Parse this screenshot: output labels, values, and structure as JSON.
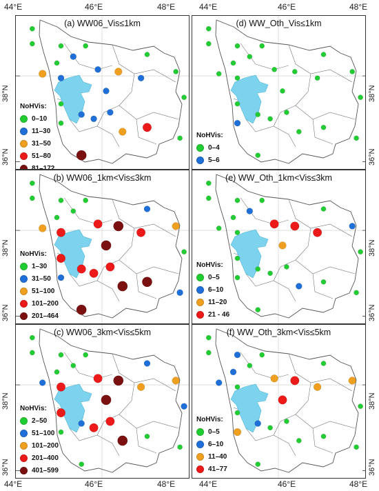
{
  "axes": {
    "longitude_labels_left": [
      "44°E",
      "46°E",
      "48°E"
    ],
    "longitude_labels_right": [
      "44°E",
      "46°E",
      "48°E"
    ],
    "latitude_labels": [
      "38°N",
      "36°N"
    ]
  },
  "colors": {
    "lake": "#7dd3ee",
    "green": "#22cc33",
    "blue": "#1f6fd8",
    "orange": "#f0a020",
    "red": "#ee1a1a",
    "darkred": "#7a1010"
  },
  "panels": [
    {
      "id": "a",
      "title": "(a) WW06_Vis≤1km",
      "legend_title": "NoHVis:",
      "legend": [
        {
          "label": "0–10",
          "color": "green"
        },
        {
          "label": "11–30",
          "color": "blue"
        },
        {
          "label": "31–50",
          "color": "orange"
        },
        {
          "label": "51–80",
          "color": "red"
        },
        {
          "label": "81–172",
          "color": "darkred"
        }
      ],
      "stations": [
        {
          "lon": 44.3,
          "lat": 39.1,
          "cls": 0
        },
        {
          "lon": 44.3,
          "lat": 38.75,
          "cls": 0
        },
        {
          "lon": 45.0,
          "lat": 38.7,
          "cls": 0
        },
        {
          "lon": 45.6,
          "lat": 38.7,
          "cls": 0
        },
        {
          "lon": 44.9,
          "lat": 38.3,
          "cls": 0
        },
        {
          "lon": 45.3,
          "lat": 38.45,
          "cls": 1
        },
        {
          "lon": 47.1,
          "lat": 38.5,
          "cls": 0
        },
        {
          "lon": 44.55,
          "lat": 38.05,
          "cls": 2
        },
        {
          "lon": 45.0,
          "lat": 37.95,
          "cls": 1
        },
        {
          "lon": 45.9,
          "lat": 38.15,
          "cls": 1
        },
        {
          "lon": 46.4,
          "lat": 38.1,
          "cls": 2
        },
        {
          "lon": 46.95,
          "lat": 37.95,
          "cls": 1
        },
        {
          "lon": 47.8,
          "lat": 38.1,
          "cls": 0
        },
        {
          "lon": 46.1,
          "lat": 37.65,
          "cls": 1
        },
        {
          "lon": 48.0,
          "lat": 37.5,
          "cls": 0
        },
        {
          "lon": 45.0,
          "lat": 37.35,
          "cls": 0
        },
        {
          "lon": 45.5,
          "lat": 37.1,
          "cls": 1
        },
        {
          "lon": 45.8,
          "lat": 37.0,
          "cls": 1
        },
        {
          "lon": 46.2,
          "lat": 37.15,
          "cls": 1
        },
        {
          "lon": 45.0,
          "lat": 36.9,
          "cls": 0
        },
        {
          "lon": 46.5,
          "lat": 36.7,
          "cls": 2
        },
        {
          "lon": 47.1,
          "lat": 36.8,
          "cls": 3
        },
        {
          "lon": 47.9,
          "lat": 36.55,
          "cls": 0
        },
        {
          "lon": 45.5,
          "lat": 36.15,
          "cls": 4
        }
      ]
    },
    {
      "id": "d",
      "title": "(d) WW_Oth_Vis≤1km",
      "legend_title": "NoHVis:",
      "legend": [
        {
          "label": "0–4",
          "color": "green"
        },
        {
          "label": "5–6",
          "color": "blue"
        }
      ],
      "stations": [
        {
          "lon": 44.3,
          "lat": 39.1,
          "cls": 0
        },
        {
          "lon": 44.3,
          "lat": 38.75,
          "cls": 0
        },
        {
          "lon": 45.0,
          "lat": 38.7,
          "cls": 0
        },
        {
          "lon": 45.6,
          "lat": 38.7,
          "cls": 0
        },
        {
          "lon": 44.9,
          "lat": 38.3,
          "cls": 0
        },
        {
          "lon": 45.3,
          "lat": 38.45,
          "cls": 0
        },
        {
          "lon": 47.1,
          "lat": 38.5,
          "cls": 0
        },
        {
          "lon": 44.55,
          "lat": 38.05,
          "cls": 0
        },
        {
          "lon": 45.0,
          "lat": 37.95,
          "cls": 0
        },
        {
          "lon": 45.9,
          "lat": 38.15,
          "cls": 0
        },
        {
          "lon": 46.4,
          "lat": 38.1,
          "cls": 0
        },
        {
          "lon": 46.95,
          "lat": 37.95,
          "cls": 0
        },
        {
          "lon": 47.8,
          "lat": 38.1,
          "cls": 0
        },
        {
          "lon": 46.1,
          "lat": 37.65,
          "cls": 0
        },
        {
          "lon": 48.0,
          "lat": 37.5,
          "cls": 0
        },
        {
          "lon": 45.0,
          "lat": 37.35,
          "cls": 0
        },
        {
          "lon": 45.5,
          "lat": 37.1,
          "cls": 0
        },
        {
          "lon": 45.8,
          "lat": 37.0,
          "cls": 0
        },
        {
          "lon": 46.2,
          "lat": 37.15,
          "cls": 0
        },
        {
          "lon": 45.0,
          "lat": 36.9,
          "cls": 1
        },
        {
          "lon": 46.5,
          "lat": 36.7,
          "cls": 0
        },
        {
          "lon": 47.1,
          "lat": 36.8,
          "cls": 0
        },
        {
          "lon": 47.9,
          "lat": 36.55,
          "cls": 0
        },
        {
          "lon": 45.5,
          "lat": 36.15,
          "cls": 0
        }
      ]
    },
    {
      "id": "b",
      "title": "(b) WW06_1km<Vis≤3km",
      "legend_title": "NoHVis:",
      "legend": [
        {
          "label": "1–30",
          "color": "green"
        },
        {
          "label": "31–50",
          "color": "blue"
        },
        {
          "label": "51–100",
          "color": "orange"
        },
        {
          "label": "101–200",
          "color": "red"
        },
        {
          "label": "201–464",
          "color": "darkred"
        }
      ],
      "stations": [
        {
          "lon": 44.3,
          "lat": 39.1,
          "cls": 0
        },
        {
          "lon": 44.3,
          "lat": 38.75,
          "cls": 0
        },
        {
          "lon": 45.0,
          "lat": 38.7,
          "cls": 0
        },
        {
          "lon": 45.6,
          "lat": 38.7,
          "cls": 0
        },
        {
          "lon": 44.9,
          "lat": 38.3,
          "cls": 0
        },
        {
          "lon": 45.3,
          "lat": 38.45,
          "cls": 0
        },
        {
          "lon": 47.1,
          "lat": 38.5,
          "cls": 1
        },
        {
          "lon": 44.55,
          "lat": 38.05,
          "cls": 2
        },
        {
          "lon": 45.0,
          "lat": 37.95,
          "cls": 3
        },
        {
          "lon": 45.9,
          "lat": 38.15,
          "cls": 3
        },
        {
          "lon": 46.4,
          "lat": 38.1,
          "cls": 4
        },
        {
          "lon": 46.95,
          "lat": 37.95,
          "cls": 3
        },
        {
          "lon": 47.8,
          "lat": 38.1,
          "cls": 2
        },
        {
          "lon": 46.1,
          "lat": 37.65,
          "cls": 4
        },
        {
          "lon": 48.0,
          "lat": 37.5,
          "cls": 0
        },
        {
          "lon": 45.0,
          "lat": 37.35,
          "cls": 3
        },
        {
          "lon": 45.5,
          "lat": 37.1,
          "cls": 3
        },
        {
          "lon": 45.8,
          "lat": 37.0,
          "cls": 3
        },
        {
          "lon": 46.2,
          "lat": 37.15,
          "cls": 3
        },
        {
          "lon": 45.0,
          "lat": 36.9,
          "cls": 1
        },
        {
          "lon": 46.5,
          "lat": 36.7,
          "cls": 4
        },
        {
          "lon": 47.1,
          "lat": 36.8,
          "cls": 4
        },
        {
          "lon": 47.9,
          "lat": 36.55,
          "cls": 1
        },
        {
          "lon": 45.5,
          "lat": 36.15,
          "cls": 4
        }
      ]
    },
    {
      "id": "e",
      "title": "(e) WW_Oth_1km<Vis≤3km",
      "legend_title": "NoHVis:",
      "legend": [
        {
          "label": "0–5",
          "color": "green"
        },
        {
          "label": "6–10",
          "color": "blue"
        },
        {
          "label": "11–20",
          "color": "orange"
        },
        {
          "label": "21 - 46",
          "color": "red"
        }
      ],
      "stations": [
        {
          "lon": 44.3,
          "lat": 39.1,
          "cls": 0
        },
        {
          "lon": 44.3,
          "lat": 38.75,
          "cls": 0
        },
        {
          "lon": 45.0,
          "lat": 38.7,
          "cls": 0
        },
        {
          "lon": 45.6,
          "lat": 38.7,
          "cls": 0
        },
        {
          "lon": 44.9,
          "lat": 38.3,
          "cls": 0
        },
        {
          "lon": 45.3,
          "lat": 38.45,
          "cls": 1
        },
        {
          "lon": 47.1,
          "lat": 38.5,
          "cls": 0
        },
        {
          "lon": 44.55,
          "lat": 38.05,
          "cls": 0
        },
        {
          "lon": 45.0,
          "lat": 37.95,
          "cls": 0
        },
        {
          "lon": 45.9,
          "lat": 38.15,
          "cls": 3
        },
        {
          "lon": 46.4,
          "lat": 38.1,
          "cls": 3
        },
        {
          "lon": 46.95,
          "lat": 37.95,
          "cls": 3
        },
        {
          "lon": 47.8,
          "lat": 38.1,
          "cls": 1
        },
        {
          "lon": 46.1,
          "lat": 37.65,
          "cls": 2
        },
        {
          "lon": 48.0,
          "lat": 37.5,
          "cls": 0
        },
        {
          "lon": 45.0,
          "lat": 37.35,
          "cls": 0
        },
        {
          "lon": 45.5,
          "lat": 37.1,
          "cls": 0
        },
        {
          "lon": 45.8,
          "lat": 37.0,
          "cls": 0
        },
        {
          "lon": 46.2,
          "lat": 37.15,
          "cls": 0
        },
        {
          "lon": 45.0,
          "lat": 36.9,
          "cls": 0
        },
        {
          "lon": 46.5,
          "lat": 36.7,
          "cls": 1
        },
        {
          "lon": 47.1,
          "lat": 36.8,
          "cls": 0
        },
        {
          "lon": 47.9,
          "lat": 36.55,
          "cls": 0
        },
        {
          "lon": 45.5,
          "lat": 36.15,
          "cls": 0
        }
      ]
    },
    {
      "id": "c",
      "title": "(c) WW06_3km<Vis≤5km",
      "legend_title": "NoHVis:",
      "legend": [
        {
          "label": "2–50",
          "color": "green"
        },
        {
          "label": "51–100",
          "color": "blue"
        },
        {
          "label": "101–200",
          "color": "orange"
        },
        {
          "label": "201–400",
          "color": "red"
        },
        {
          "label": "401–599",
          "color": "darkred"
        }
      ],
      "stations": [
        {
          "lon": 44.3,
          "lat": 39.1,
          "cls": 0
        },
        {
          "lon": 44.3,
          "lat": 38.75,
          "cls": 0
        },
        {
          "lon": 45.0,
          "lat": 38.7,
          "cls": 0
        },
        {
          "lon": 45.6,
          "lat": 38.7,
          "cls": 0
        },
        {
          "lon": 44.9,
          "lat": 38.3,
          "cls": 0
        },
        {
          "lon": 45.3,
          "lat": 38.45,
          "cls": 0
        },
        {
          "lon": 47.1,
          "lat": 38.5,
          "cls": 1
        },
        {
          "lon": 44.55,
          "lat": 38.05,
          "cls": 1
        },
        {
          "lon": 45.0,
          "lat": 37.95,
          "cls": 3
        },
        {
          "lon": 45.9,
          "lat": 38.15,
          "cls": 3
        },
        {
          "lon": 46.4,
          "lat": 38.1,
          "cls": 4
        },
        {
          "lon": 46.95,
          "lat": 37.95,
          "cls": 2
        },
        {
          "lon": 47.8,
          "lat": 38.1,
          "cls": 2
        },
        {
          "lon": 46.1,
          "lat": 37.65,
          "cls": 4
        },
        {
          "lon": 48.0,
          "lat": 37.5,
          "cls": 1
        },
        {
          "lon": 45.0,
          "lat": 37.35,
          "cls": 3
        },
        {
          "lon": 45.5,
          "lat": 37.1,
          "cls": 1
        },
        {
          "lon": 45.8,
          "lat": 37.0,
          "cls": 3
        },
        {
          "lon": 46.2,
          "lat": 37.15,
          "cls": 3
        },
        {
          "lon": 45.0,
          "lat": 36.9,
          "cls": 0
        },
        {
          "lon": 46.5,
          "lat": 36.7,
          "cls": 4
        },
        {
          "lon": 47.1,
          "lat": 36.8,
          "cls": 0
        },
        {
          "lon": 47.9,
          "lat": 36.55,
          "cls": 0
        },
        {
          "lon": 45.5,
          "lat": 36.15,
          "cls": 0
        }
      ]
    },
    {
      "id": "f",
      "title": "(f) WW_Oth_3km<Vis≤5km",
      "legend_title": "NoHVis:",
      "legend": [
        {
          "label": "0–5",
          "color": "green"
        },
        {
          "label": "6–10",
          "color": "blue"
        },
        {
          "label": "11–40",
          "color": "orange"
        },
        {
          "label": "41–77",
          "color": "red"
        }
      ],
      "stations": [
        {
          "lon": 44.3,
          "lat": 39.1,
          "cls": 0
        },
        {
          "lon": 44.3,
          "lat": 38.75,
          "cls": 0
        },
        {
          "lon": 45.0,
          "lat": 38.7,
          "cls": 1
        },
        {
          "lon": 45.6,
          "lat": 38.7,
          "cls": 0
        },
        {
          "lon": 44.9,
          "lat": 38.3,
          "cls": 1
        },
        {
          "lon": 45.3,
          "lat": 38.45,
          "cls": 0
        },
        {
          "lon": 47.1,
          "lat": 38.5,
          "cls": 0
        },
        {
          "lon": 44.55,
          "lat": 38.05,
          "cls": 1
        },
        {
          "lon": 45.0,
          "lat": 37.95,
          "cls": 0
        },
        {
          "lon": 45.9,
          "lat": 38.15,
          "cls": 2
        },
        {
          "lon": 46.4,
          "lat": 38.1,
          "cls": 3
        },
        {
          "lon": 46.95,
          "lat": 37.95,
          "cls": 2
        },
        {
          "lon": 47.8,
          "lat": 38.1,
          "cls": 2
        },
        {
          "lon": 46.1,
          "lat": 37.65,
          "cls": 3
        },
        {
          "lon": 48.0,
          "lat": 37.5,
          "cls": 0
        },
        {
          "lon": 45.0,
          "lat": 37.35,
          "cls": 0
        },
        {
          "lon": 45.5,
          "lat": 37.1,
          "cls": 1
        },
        {
          "lon": 45.8,
          "lat": 37.0,
          "cls": 0
        },
        {
          "lon": 46.2,
          "lat": 37.15,
          "cls": 0
        },
        {
          "lon": 45.0,
          "lat": 36.9,
          "cls": 2
        },
        {
          "lon": 46.5,
          "lat": 36.7,
          "cls": 0
        },
        {
          "lon": 47.1,
          "lat": 36.8,
          "cls": 0
        },
        {
          "lon": 47.9,
          "lat": 36.55,
          "cls": 0
        },
        {
          "lon": 45.5,
          "lat": 36.15,
          "cls": 0
        }
      ]
    }
  ]
}
